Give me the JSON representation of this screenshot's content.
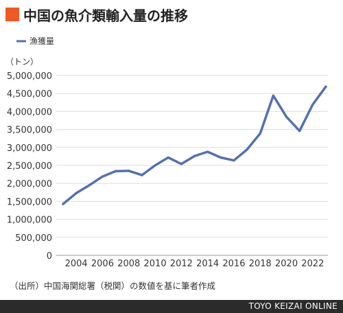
{
  "header": {
    "title": "中国の魚介類輸入量の推移",
    "accent_color": "#ef5a24"
  },
  "chart_data": {
    "type": "line",
    "title": "中国の魚介類輸入量の推移",
    "ylabel": "（トン）",
    "xlabel": "",
    "ylim": [
      0,
      5000000
    ],
    "y_ticks": [
      0,
      500000,
      1000000,
      1500000,
      2000000,
      2500000,
      3000000,
      3500000,
      4000000,
      4500000,
      5000000
    ],
    "y_tick_labels": [
      "0",
      "500,000",
      "1,000,000",
      "1,500,000",
      "2,000,000",
      "2,500,000",
      "3,000,000",
      "3,500,000",
      "4,000,000",
      "4,500,000",
      "5,000,000"
    ],
    "x_tick_labels": [
      "2004",
      "2006",
      "2008",
      "2010",
      "2012",
      "2014",
      "2016",
      "2018",
      "2020",
      "2022"
    ],
    "grid": true,
    "legend_position": "top-left",
    "x": [
      2003,
      2004,
      2005,
      2006,
      2007,
      2008,
      2009,
      2010,
      2011,
      2012,
      2013,
      2014,
      2015,
      2016,
      2017,
      2018,
      2019,
      2020,
      2021,
      2022,
      2023
    ],
    "series": [
      {
        "name": "漁獲量",
        "color": "#5470b0",
        "values": [
          1430000,
          1730000,
          1950000,
          2190000,
          2340000,
          2350000,
          2230000,
          2500000,
          2720000,
          2540000,
          2760000,
          2880000,
          2720000,
          2640000,
          2940000,
          3390000,
          4440000,
          3850000,
          3460000,
          4190000,
          4690000
        ]
      }
    ]
  },
  "source_note": "（出所）中国海関総署（税関）の数値を基に筆者作成",
  "footer": {
    "brand": "TOYO KEIZAI ONLINE"
  }
}
